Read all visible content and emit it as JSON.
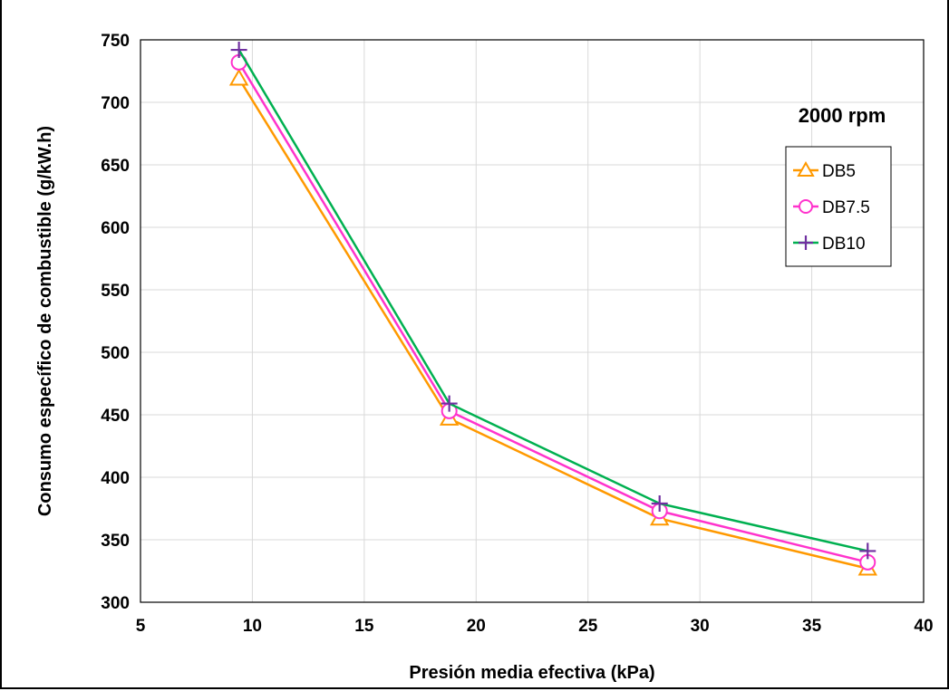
{
  "chart_data": {
    "type": "line",
    "xlabel": "Presión media efectiva (kPa)",
    "ylabel": "Consumo específico de combustible  (g/kW.h)",
    "annotation": "2000 rpm",
    "xlim": [
      5,
      40
    ],
    "ylim": [
      300,
      750
    ],
    "xticks": [
      5,
      10,
      15,
      20,
      25,
      30,
      35,
      40
    ],
    "yticks": [
      300,
      350,
      400,
      450,
      500,
      550,
      600,
      650,
      700,
      750
    ],
    "grid": true,
    "legend_position": "top-right",
    "x": [
      9.4,
      18.8,
      28.2,
      37.5
    ],
    "series": [
      {
        "name": "DB5",
        "values": [
          719,
          447,
          367,
          327
        ],
        "color": "#ff9900",
        "marker": "triangle"
      },
      {
        "name": "DB7.5",
        "values": [
          732,
          453,
          373,
          332
        ],
        "color": "#ff33cc",
        "marker": "circle"
      },
      {
        "name": "DB10",
        "values": [
          742,
          459,
          379,
          341
        ],
        "color": "#00b050",
        "marker_color": "#7030a0",
        "marker": "plus"
      }
    ]
  }
}
